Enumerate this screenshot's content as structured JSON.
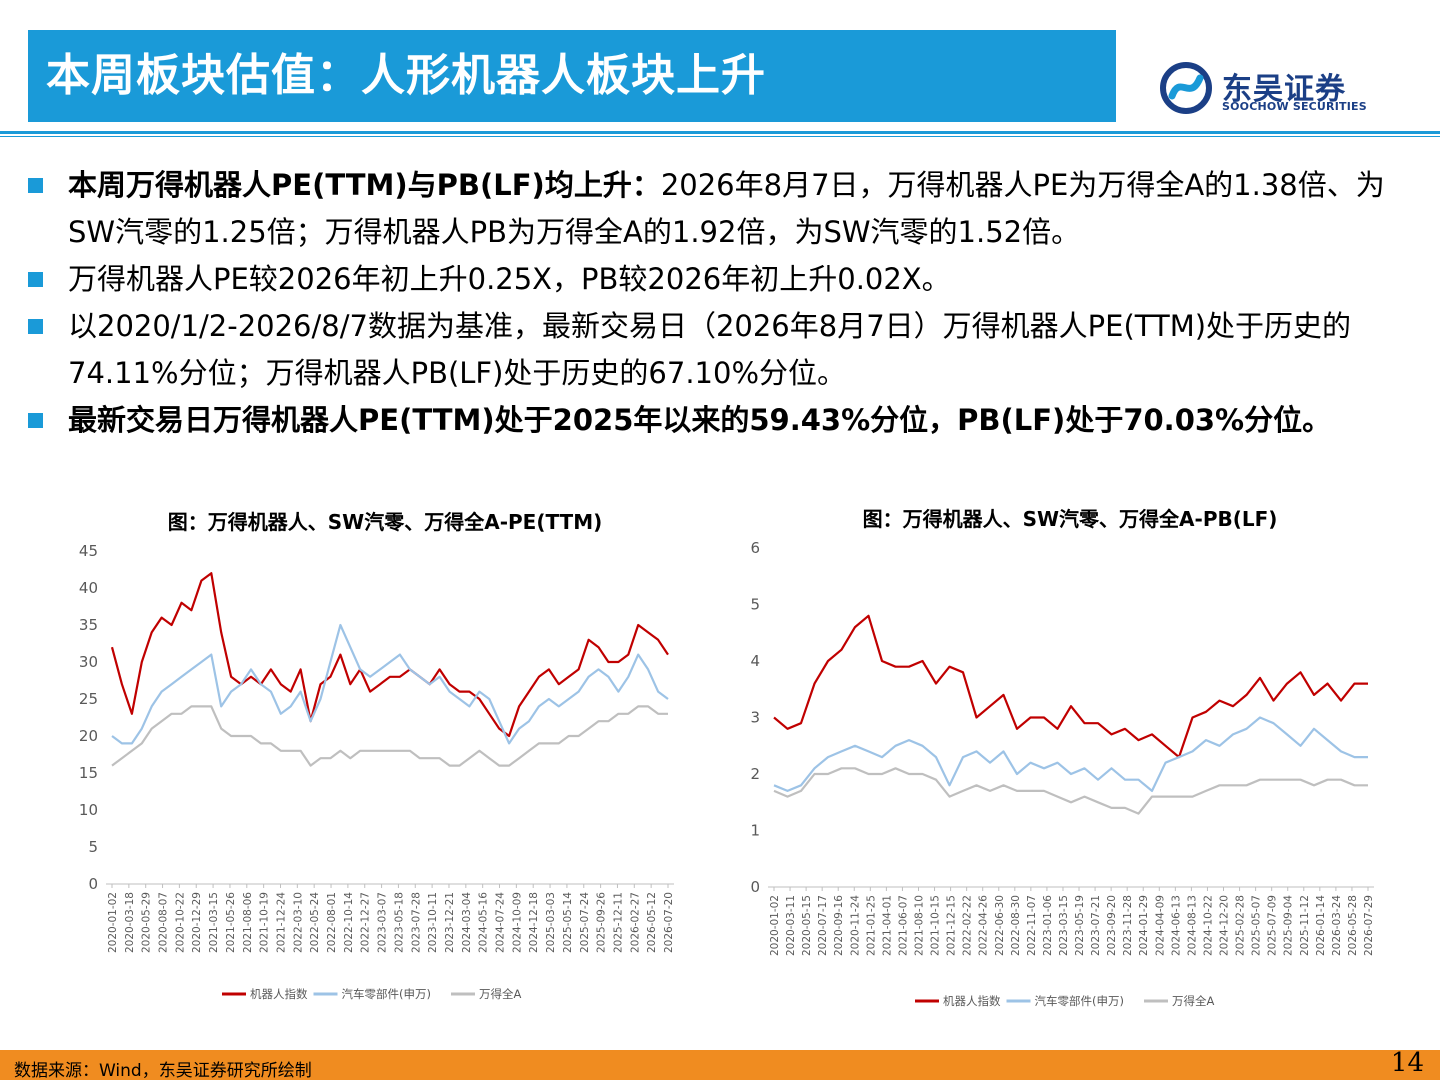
{
  "header": {
    "title": "本周板块估值：人形机器人板块上升",
    "logo_name": "东吴证券",
    "logo_en": "SOOCHOW SECURITIES"
  },
  "bullets": [
    {
      "bold": "本周万得机器人PE(TTM)与PB(LF)均上升：",
      "text": "2026年8月7日，万得机器人PE为万得全A的1.38倍、为SW汽零的1.25倍；万得机器人PB为万得全A的1.92倍，为SW汽零的1.52倍。"
    },
    {
      "bold": "",
      "text": "万得机器人PE较2026年初上升0.25X，PB较2026年初上升0.02X。"
    },
    {
      "bold": "",
      "text": "以2020/1/2-2026/8/7数据为基准，最新交易日（2026年8月7日）万得机器人PE(TTM)处于历史的74.11%分位；万得机器人PB(LF)处于历史的67.10%分位。"
    },
    {
      "bold": "最新交易日万得机器人PE(TTM)处于2025年以来的59.43%分位，PB(LF)处于70.03%分位。",
      "text": ""
    }
  ],
  "footer": {
    "source": "数据来源：Wind，东吴证券研究所绘制",
    "page": "14"
  },
  "colors": {
    "accent": "#1a9ad8",
    "robot": "#c00000",
    "auto": "#9dc3e6",
    "all_a": "#bfbfbf",
    "footer": "#f08c20"
  },
  "chart_data": [
    {
      "type": "line",
      "title": "图：万得机器人、SW汽零、万得全A-PE(TTM)",
      "ylim": [
        0,
        45
      ],
      "yticks": [
        "0",
        "5",
        "10",
        "15",
        "20",
        "25",
        "30",
        "35",
        "40",
        "45"
      ],
      "xticks": [
        "2020-01-02",
        "2020-03-18",
        "2020-05-29",
        "2020-08-07",
        "2020-10-22",
        "2020-12-29",
        "2021-03-15",
        "2021-05-26",
        "2021-08-06",
        "2021-10-19",
        "2021-12-24",
        "2022-03-10",
        "2022-05-24",
        "2022-08-01",
        "2022-10-14",
        "2022-12-27",
        "2023-03-07",
        "2023-05-18",
        "2023-07-28",
        "2023-10-11",
        "2023-12-21",
        "2024-03-04",
        "2024-05-16",
        "2024-07-24",
        "2024-10-09",
        "2024-12-18",
        "2025-03-03",
        "2025-05-14",
        "2025-07-24",
        "2025-09-26",
        "2025-12-11",
        "2026-02-27",
        "2026-05-12",
        "2026-07-20"
      ],
      "legend": [
        "机器人指数",
        "汽车零部件(申万)",
        "万得全A"
      ],
      "legend_position": "bottom",
      "grid": false,
      "series": [
        {
          "name": "机器人指数",
          "values": [
            32,
            27,
            23,
            30,
            34,
            36,
            35,
            38,
            37,
            41,
            42,
            34,
            28,
            27,
            28,
            27,
            29,
            27,
            26,
            29,
            22,
            27,
            28,
            31,
            27,
            29,
            26,
            27,
            28,
            28,
            29,
            28,
            27,
            29,
            27,
            26,
            26,
            25,
            23,
            21,
            20,
            24,
            26,
            28,
            29,
            27,
            28,
            29,
            33,
            32,
            30,
            30,
            31,
            35,
            34,
            33,
            31
          ]
        },
        {
          "name": "汽车零部件(申万)",
          "values": [
            20,
            19,
            19,
            21,
            24,
            26,
            27,
            28,
            29,
            30,
            31,
            24,
            26,
            27,
            29,
            27,
            26,
            23,
            24,
            26,
            22,
            25,
            30,
            35,
            32,
            29,
            28,
            29,
            30,
            31,
            29,
            28,
            27,
            28,
            26,
            25,
            24,
            26,
            25,
            22,
            19,
            21,
            22,
            24,
            25,
            24,
            25,
            26,
            28,
            29,
            28,
            26,
            28,
            31,
            29,
            26,
            25
          ]
        },
        {
          "name": "万得全A",
          "values": [
            16,
            17,
            18,
            19,
            21,
            22,
            23,
            23,
            24,
            24,
            24,
            21,
            20,
            20,
            20,
            19,
            19,
            18,
            18,
            18,
            16,
            17,
            17,
            18,
            17,
            18,
            18,
            18,
            18,
            18,
            18,
            17,
            17,
            17,
            16,
            16,
            17,
            18,
            17,
            16,
            16,
            17,
            18,
            19,
            19,
            19,
            20,
            20,
            21,
            22,
            22,
            23,
            23,
            24,
            24,
            23,
            23
          ]
        }
      ]
    },
    {
      "type": "line",
      "title": "图：万得机器人、SW汽零、万得全A-PB(LF)",
      "ylim": [
        0,
        6
      ],
      "yticks": [
        "0",
        "1",
        "2",
        "3",
        "4",
        "5",
        "6"
      ],
      "xticks": [
        "2020-01-02",
        "2020-03-11",
        "2020-05-15",
        "2020-07-17",
        "2020-09-16",
        "2020-11-24",
        "2021-01-25",
        "2021-04-01",
        "2021-06-07",
        "2021-08-10",
        "2021-10-15",
        "2021-12-15",
        "2022-02-22",
        "2022-04-26",
        "2022-06-30",
        "2022-08-30",
        "2022-11-07",
        "2023-01-06",
        "2023-03-15",
        "2023-05-19",
        "2023-07-21",
        "2023-09-20",
        "2023-11-28",
        "2024-01-29",
        "2024-04-09",
        "2024-06-13",
        "2024-08-13",
        "2024-10-22",
        "2024-12-20",
        "2025-02-28",
        "2025-05-07",
        "2025-07-09",
        "2025-09-04",
        "2025-11-12",
        "2026-01-14",
        "2026-03-24",
        "2026-05-28",
        "2026-07-29"
      ],
      "legend": [
        "机器人指数",
        "汽车零部件(申万)",
        "万得全A"
      ],
      "legend_position": "bottom",
      "grid": false,
      "series": [
        {
          "name": "机器人指数",
          "values": [
            3.0,
            2.8,
            2.9,
            3.6,
            4.0,
            4.2,
            4.6,
            4.8,
            4.0,
            3.9,
            3.9,
            4.0,
            3.6,
            3.9,
            3.8,
            3.0,
            3.2,
            3.4,
            2.8,
            3.0,
            3.0,
            2.8,
            3.2,
            2.9,
            2.9,
            2.7,
            2.8,
            2.6,
            2.7,
            2.5,
            2.3,
            3.0,
            3.1,
            3.3,
            3.2,
            3.4,
            3.7,
            3.3,
            3.6,
            3.8,
            3.4,
            3.6,
            3.3,
            3.6,
            3.6
          ]
        },
        {
          "name": "汽车零部件(申万)",
          "values": [
            1.8,
            1.7,
            1.8,
            2.1,
            2.3,
            2.4,
            2.5,
            2.4,
            2.3,
            2.5,
            2.6,
            2.5,
            2.3,
            1.8,
            2.3,
            2.4,
            2.2,
            2.4,
            2.0,
            2.2,
            2.1,
            2.2,
            2.0,
            2.1,
            1.9,
            2.1,
            1.9,
            1.9,
            1.7,
            2.2,
            2.3,
            2.4,
            2.6,
            2.5,
            2.7,
            2.8,
            3.0,
            2.9,
            2.7,
            2.5,
            2.8,
            2.6,
            2.4,
            2.3,
            2.3
          ]
        },
        {
          "name": "万得全A",
          "values": [
            1.7,
            1.6,
            1.7,
            2.0,
            2.0,
            2.1,
            2.1,
            2.0,
            2.0,
            2.1,
            2.0,
            2.0,
            1.9,
            1.6,
            1.7,
            1.8,
            1.7,
            1.8,
            1.7,
            1.7,
            1.7,
            1.6,
            1.5,
            1.6,
            1.5,
            1.4,
            1.4,
            1.3,
            1.6,
            1.6,
            1.6,
            1.6,
            1.7,
            1.8,
            1.8,
            1.8,
            1.9,
            1.9,
            1.9,
            1.9,
            1.8,
            1.9,
            1.9,
            1.8,
            1.8
          ]
        }
      ]
    }
  ]
}
